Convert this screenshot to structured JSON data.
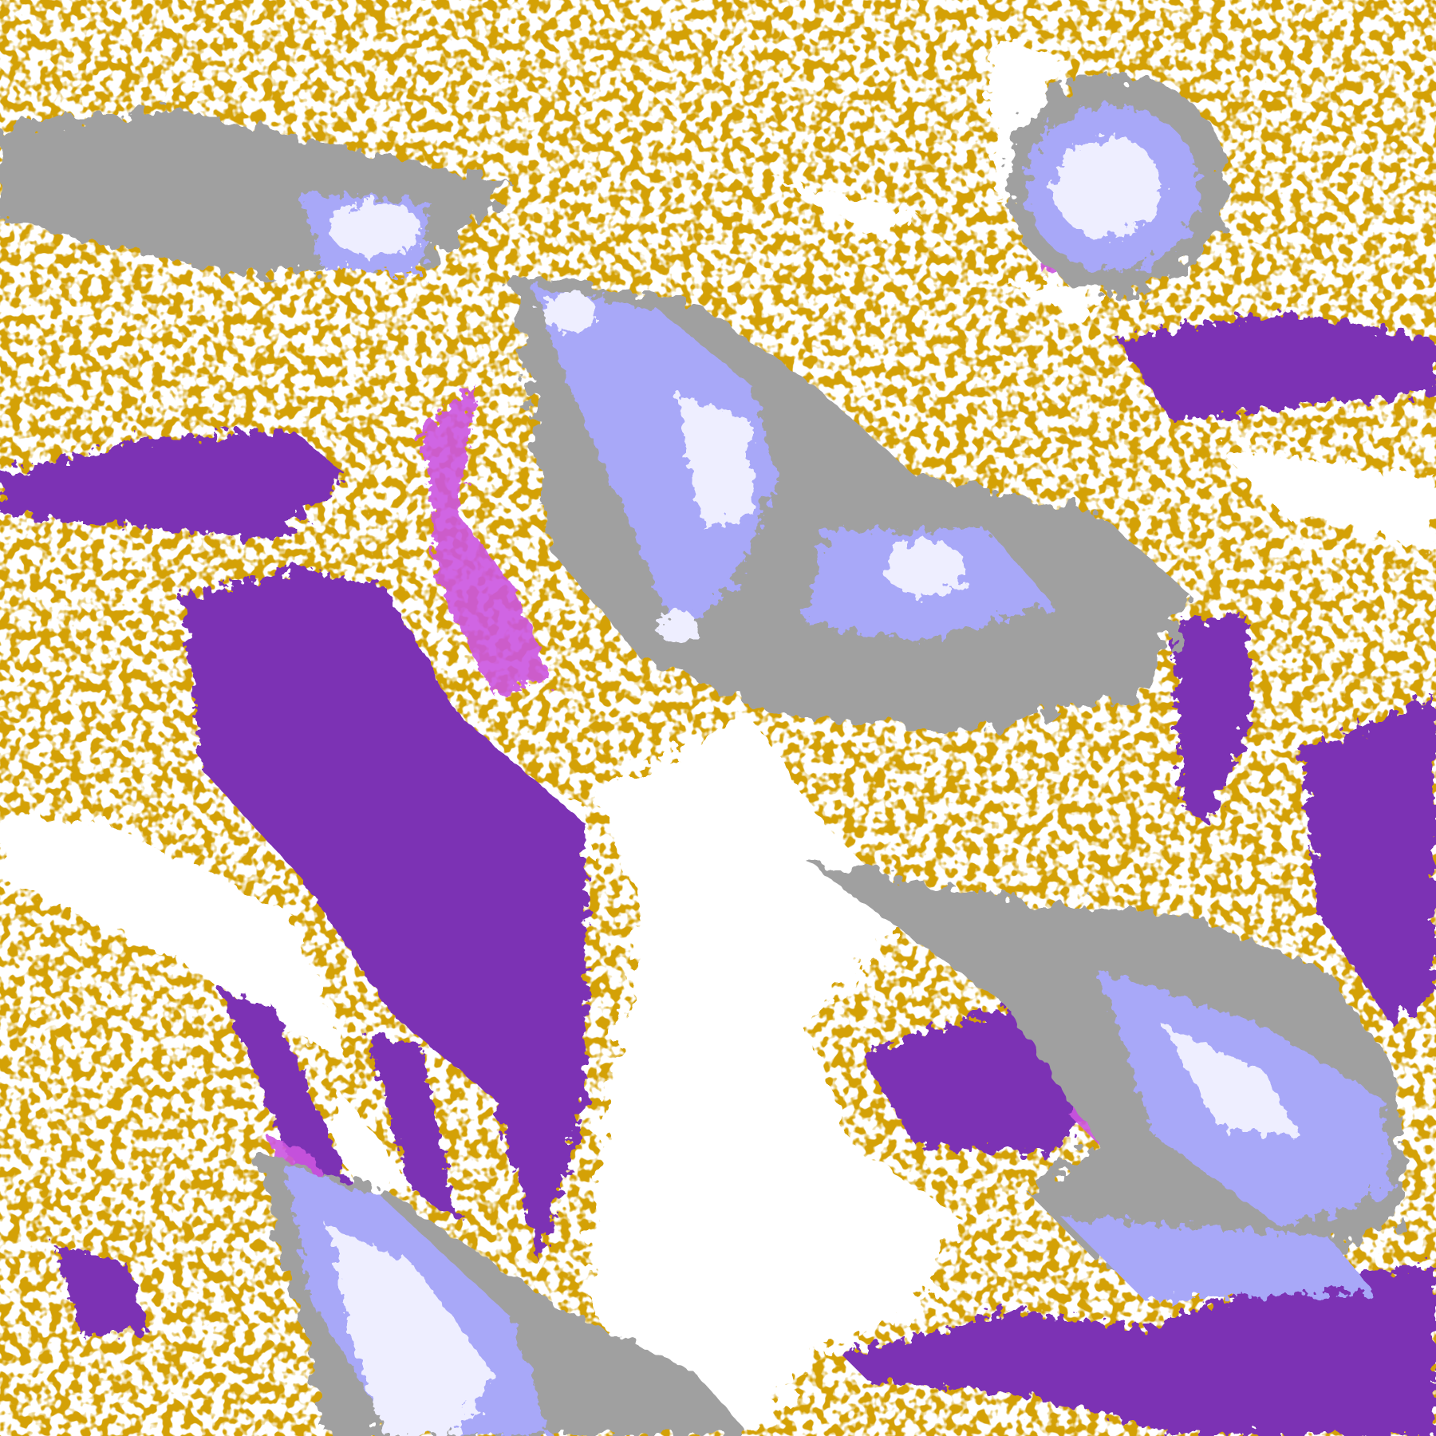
{
  "image": {
    "kind": "false-color satellite cloud classification",
    "palette": {
      "clear": "#ffffff",
      "low_cloud": "#d4a106",
      "low_cloud_dark": "#b88a0a",
      "mid_cloud": "#7b32b4",
      "mixed_phase": "#cc55e0",
      "high_cloud": "#a0a0a0",
      "thin_cirrus": "#a8a8f8",
      "deep_convection": "#eeeeff"
    }
  }
}
